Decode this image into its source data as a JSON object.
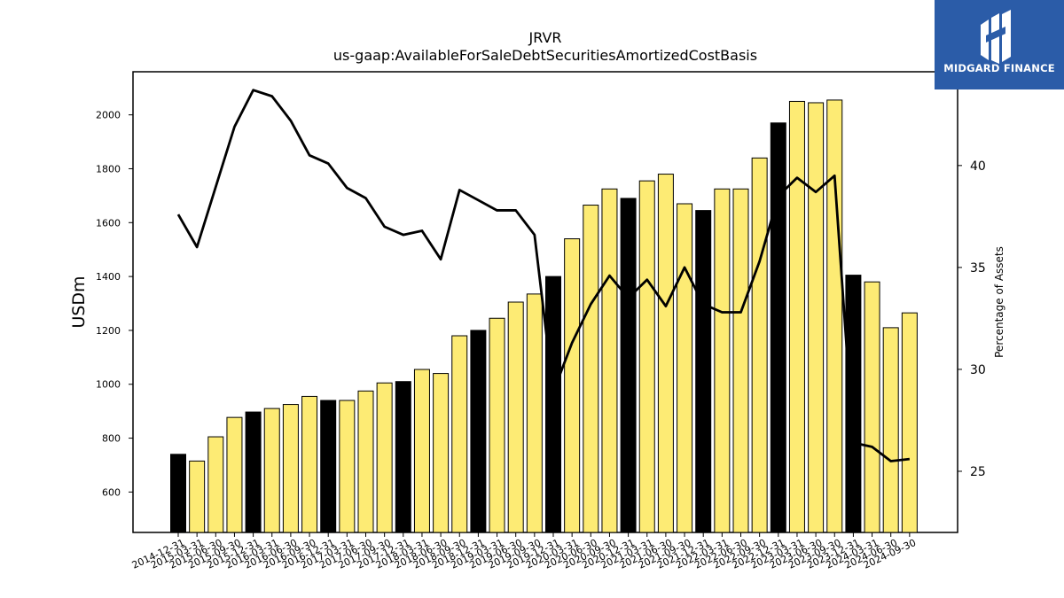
{
  "logo": {
    "text": "MIDGARD FINANCE",
    "color": "#2b5ca8"
  },
  "chart_data": {
    "type": "bar",
    "title": "JRVR",
    "subtitle": "us-gaap:AvailableForSaleDebtSecuritiesAmortizedCostBasis",
    "ylabel": "USDm",
    "y2label": "Percentage of Assets",
    "ylim": [
      450,
      2160
    ],
    "y2lim": [
      22,
      44.6
    ],
    "yticks": [
      600,
      800,
      1000,
      1200,
      1400,
      1600,
      1800,
      2000
    ],
    "y2ticks": [
      25,
      30,
      35,
      40
    ],
    "grid": false,
    "colors": {
      "q4_bar": "#000000",
      "other_bar": "#fdeb74",
      "line": "#000000"
    },
    "categories": [
      "2014-12-31",
      "2015-03-31",
      "2015-06-30",
      "2015-09-30",
      "2015-12-31",
      "2016-03-31",
      "2016-06-30",
      "2016-09-30",
      "2016-12-31",
      "2017-03-31",
      "2017-06-30",
      "2017-09-30",
      "2017-12-31",
      "2018-03-31",
      "2018-06-30",
      "2018-09-30",
      "2018-12-31",
      "2019-03-31",
      "2019-06-30",
      "2019-09-30",
      "2019-12-31",
      "2020-03-31",
      "2020-06-30",
      "2020-09-30",
      "2020-12-31",
      "2021-03-31",
      "2021-06-30",
      "2021-09-30",
      "2021-12-31",
      "2022-03-31",
      "2022-06-30",
      "2022-09-30",
      "2022-12-31",
      "2023-03-31",
      "2023-06-30",
      "2023-09-30",
      "2023-12-31",
      "2024-03-31",
      "2024-06-30",
      "2024-09-30"
    ],
    "series": [
      {
        "type": "bar",
        "axis": "left",
        "values": [
          740,
          715,
          805,
          877,
          897,
          910,
          925,
          955,
          940,
          940,
          975,
          1005,
          1010,
          1055,
          1040,
          1180,
          1200,
          1245,
          1305,
          1335,
          1400,
          1540,
          1665,
          1725,
          1690,
          1755,
          1780,
          1670,
          1645,
          1725,
          1725,
          1840,
          1970,
          2050,
          2045,
          2055,
          1405,
          1380,
          1210,
          1265
        ]
      },
      {
        "type": "line",
        "axis": "right",
        "values": [
          37.6,
          36.0,
          null,
          41.9,
          43.7,
          43.4,
          42.2,
          40.5,
          40.1,
          38.9,
          38.4,
          37.0,
          36.6,
          36.8,
          35.4,
          38.8,
          38.3,
          37.8,
          37.8,
          36.6,
          28.9,
          31.3,
          33.2,
          34.6,
          33.5,
          34.4,
          33.1,
          35.0,
          33.2,
          32.8,
          32.8,
          35.3,
          38.5,
          39.4,
          38.7,
          39.5,
          26.4,
          26.2,
          25.5,
          25.6
        ]
      }
    ]
  }
}
